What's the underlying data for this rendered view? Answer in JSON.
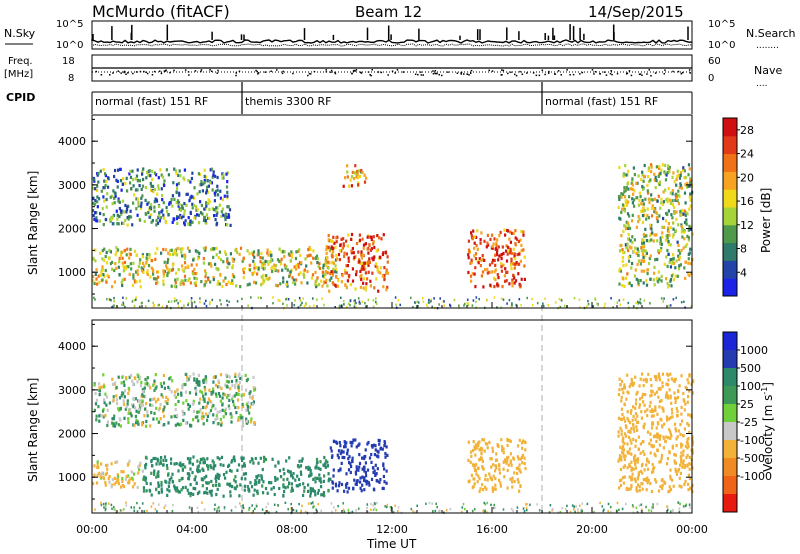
{
  "header": {
    "station": "McMurdo (fitACF)",
    "beam": "Beam 12",
    "date": "14/Sep/2015"
  },
  "top_panels": {
    "nsky_label": "N.Sky",
    "nsearch_label": "N.Search",
    "nsearch_style": "........",
    "power_ticks_left": [
      "10^5",
      "10^0"
    ],
    "power_ticks_right": [
      "10^5",
      "10^0"
    ],
    "freq_label": "Freq.",
    "freq_unit": "[MHz]",
    "freq_ticks": [
      "18",
      "8"
    ],
    "nave_label": "Nave",
    "nave_style": "....",
    "nave_ticks": [
      "60",
      "0"
    ],
    "cpid_label": "CPID"
  },
  "modes": [
    {
      "name": "normal (fast) 151 RF",
      "start_hour": 0,
      "end_hour": 6
    },
    {
      "name": "themis 3300 RF",
      "start_hour": 6,
      "end_hour": 18
    },
    {
      "name": "normal (fast) 151 RF",
      "start_hour": 18,
      "end_hour": 24
    }
  ],
  "colors": {
    "power": [
      "#1a23e6",
      "#2244a8",
      "#2f7a6a",
      "#4e9a4a",
      "#a6d33a",
      "#f0d81a",
      "#f5a321",
      "#f07217",
      "#e03a18",
      "#d01010"
    ],
    "velocity": [
      "#e81a10",
      "#f0641a",
      "#f08a25",
      "#f2b23a",
      "#c8c8c8",
      "#6fd03a",
      "#3d9a56",
      "#2c8a6a",
      "#243cb0",
      "#1b27d6"
    ]
  },
  "chart_data": [
    {
      "type": "heatmap",
      "title": "Power",
      "ylabel": "Slant Range [km]",
      "ylim": [
        180,
        4600
      ],
      "y_ticks": [
        "1000",
        "2000",
        "3000",
        "4000"
      ],
      "colorbar_label": "Power [dB]",
      "colorbar_ticks": [
        "4",
        "8",
        "12",
        "16",
        "20",
        "24",
        "28"
      ],
      "colorbar_range": [
        0,
        30
      ],
      "echo_regions": [
        {
          "t_start": 0.0,
          "t_end": 5.5,
          "r_low": 2100,
          "r_high": 3400,
          "mean": 7
        },
        {
          "t_start": 0.0,
          "t_end": 9.8,
          "r_low": 700,
          "r_high": 1600,
          "mean": 14
        },
        {
          "t_start": 9.3,
          "t_end": 11.8,
          "r_low": 600,
          "r_high": 1900,
          "mean": 22
        },
        {
          "t_start": 10.0,
          "t_end": 11.0,
          "r_low": 3000,
          "r_high": 3500,
          "mean": 18
        },
        {
          "t_start": 15.0,
          "t_end": 17.3,
          "r_low": 700,
          "r_high": 2000,
          "mean": 23
        },
        {
          "t_start": 21.0,
          "t_end": 24.0,
          "r_low": 700,
          "r_high": 3500,
          "mean": 12
        }
      ]
    },
    {
      "type": "heatmap",
      "title": "Velocity",
      "ylabel": "Slant Range [km]",
      "xlabel": "Time UT",
      "ylim": [
        180,
        4600
      ],
      "y_ticks": [
        "1000",
        "2000",
        "3000",
        "4000"
      ],
      "xlim": [
        0,
        24
      ],
      "x_ticks": [
        "00:00",
        "04:00",
        "08:00",
        "12:00",
        "16:00",
        "20:00",
        "00:00"
      ],
      "colorbar_label": "Velocity [m s^-1]",
      "colorbar_ticks": [
        "1000",
        "500",
        "100",
        "25",
        "-25",
        "-100",
        "-500",
        "-1000"
      ],
      "echo_regions": [
        {
          "t_start": 0.0,
          "t_end": 2.0,
          "r_low": 800,
          "r_high": 1400,
          "velocity": -150
        },
        {
          "t_start": 2.0,
          "t_end": 9.5,
          "r_low": 600,
          "r_high": 1500,
          "velocity": 200
        },
        {
          "t_start": 0.0,
          "t_end": 6.5,
          "r_low": 2200,
          "r_high": 3400,
          "velocity": 10
        },
        {
          "t_start": 9.5,
          "t_end": 11.8,
          "r_low": 700,
          "r_high": 1900,
          "velocity": 700
        },
        {
          "t_start": 15.0,
          "t_end": 17.3,
          "r_low": 700,
          "r_high": 1900,
          "velocity": -300
        },
        {
          "t_start": 21.0,
          "t_end": 24.0,
          "r_low": 700,
          "r_high": 3400,
          "velocity": -250
        }
      ]
    }
  ]
}
